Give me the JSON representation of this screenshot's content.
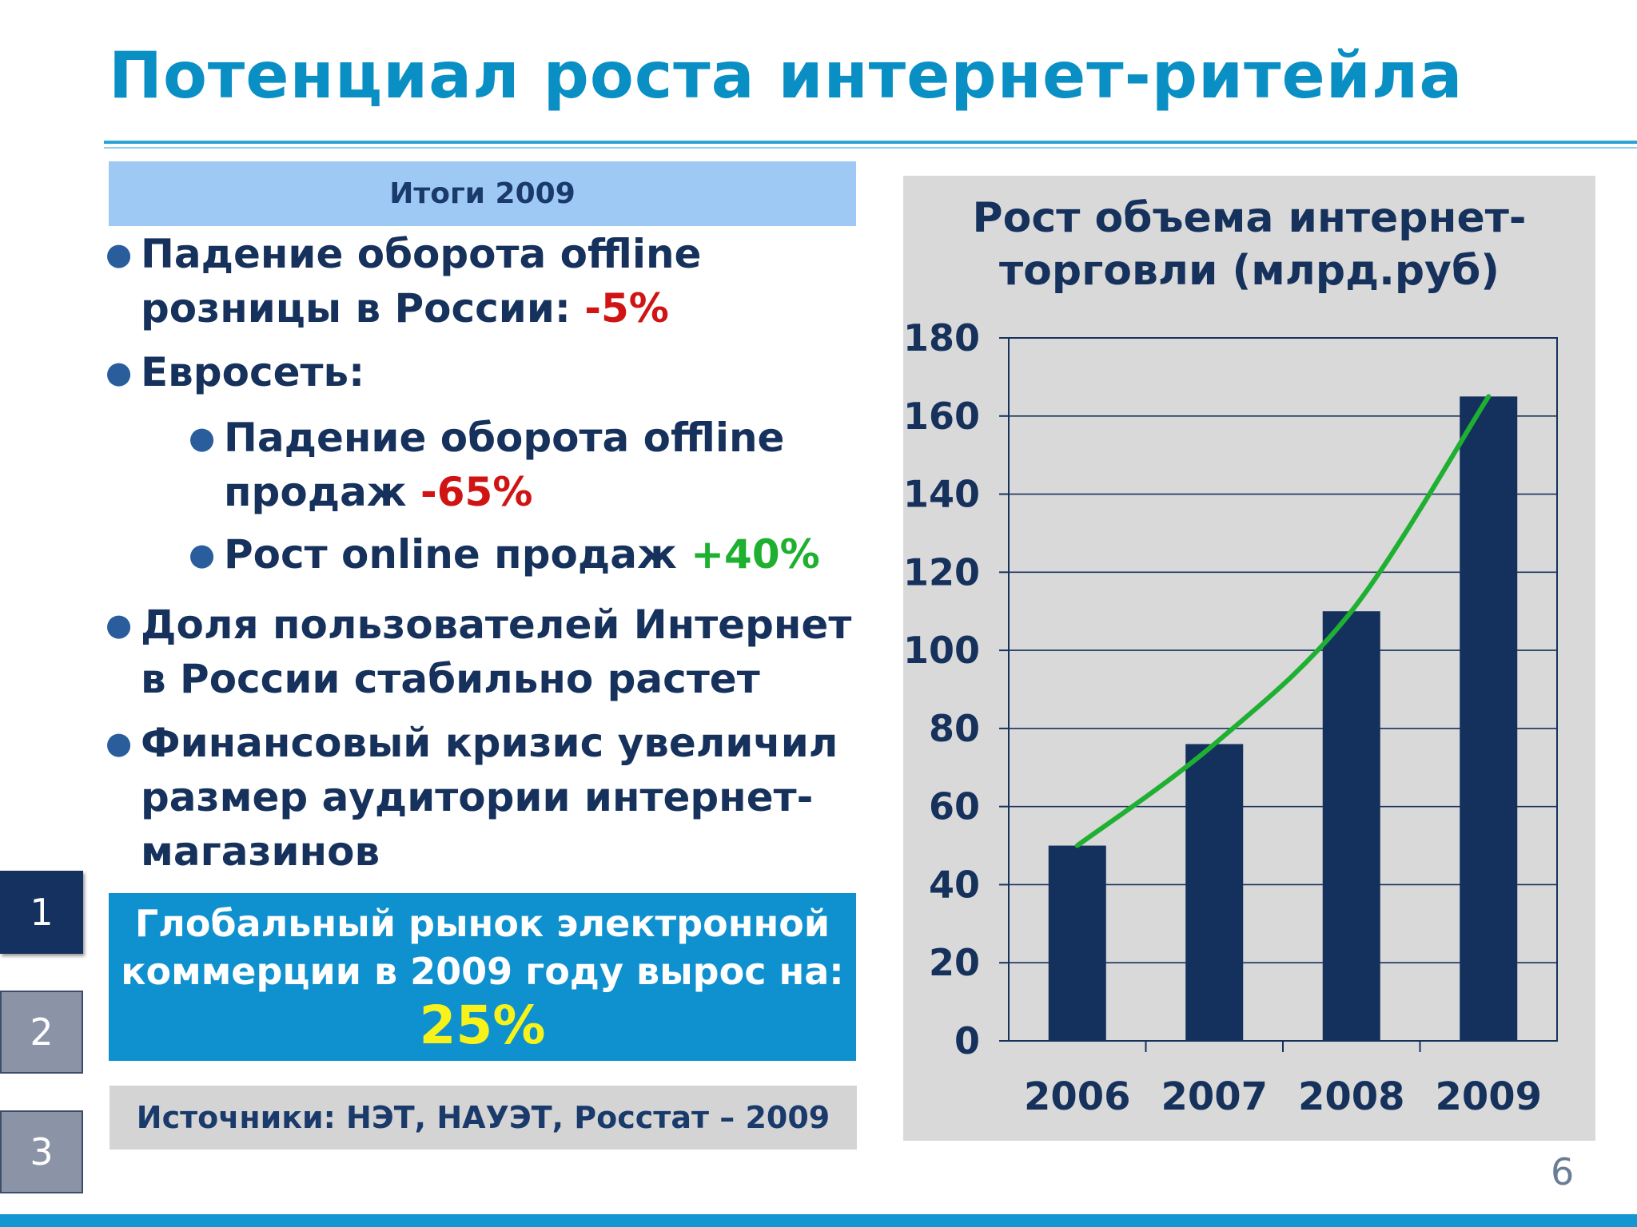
{
  "title": "Потенциал роста интернет-ритейла",
  "summary_header": "Итоги 2009",
  "bullets": {
    "b1_text": "Падение оборота offline розницы в России:",
    "b1_value": "-5%",
    "b2_text": "Евросеть:",
    "b3_text": "Падение оборота offline продаж",
    "b3_value": "-65%",
    "b4_text": "Рост  online продаж",
    "b4_value": "+40%",
    "b5_text": "Доля пользователей Интернет в России стабильно растет",
    "b6_text": "Финансовый кризис увеличил размер аудитории интернет-магазинов"
  },
  "global_box": {
    "text": "Глобальный рынок электронной коммерции в 2009 году вырос на:",
    "value": "25%"
  },
  "sources": "Источники: НЭТ, НАУЭТ, Росстат – 2009",
  "tabs": [
    "1",
    "2",
    "3"
  ],
  "page_number": "6",
  "colors": {
    "title": "#0a8fc4",
    "bar": "#13315c",
    "trend": "#1fb032",
    "negative": "#d01414",
    "positive": "#1fb032",
    "highlight": "#f7f31a"
  },
  "chart_data": {
    "type": "bar",
    "title": "Рост объема интернет-торговли (млрд.руб)",
    "categories": [
      "2006",
      "2007",
      "2008",
      "2009"
    ],
    "values": [
      50,
      76,
      110,
      165
    ],
    "ylim": [
      0,
      180
    ],
    "yticks": [
      0,
      20,
      40,
      60,
      80,
      100,
      120,
      140,
      160,
      180
    ],
    "grid": true,
    "trendline": true
  }
}
